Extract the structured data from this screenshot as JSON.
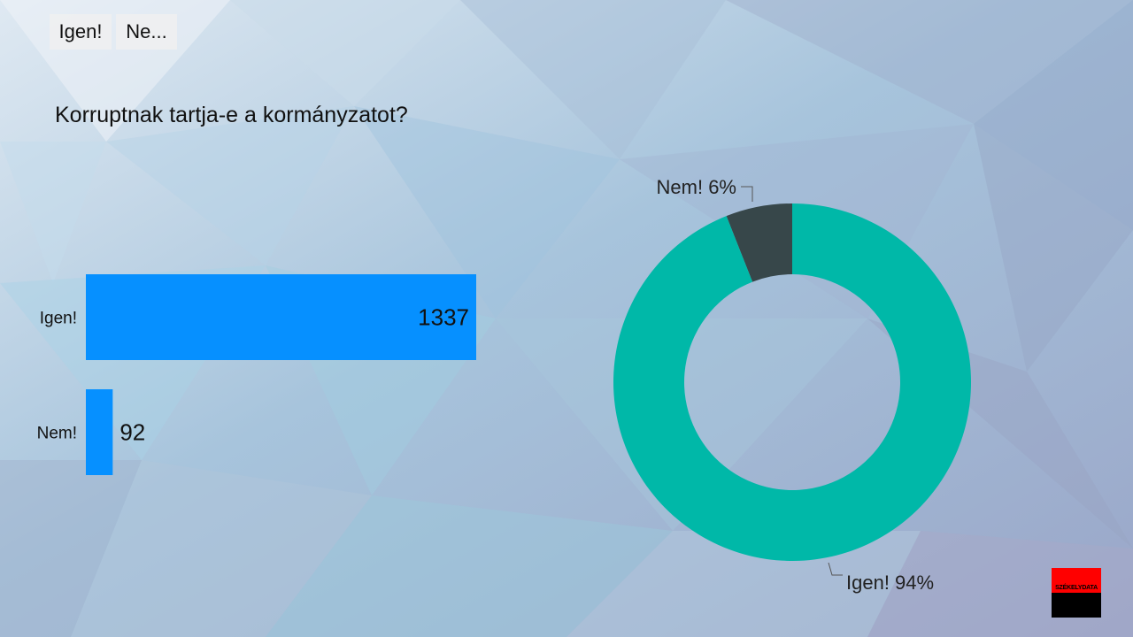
{
  "tabs": [
    {
      "label": "Igen!"
    },
    {
      "label": "Ne..."
    }
  ],
  "title": "Korruptnak tartja-e a kormányzatot?",
  "colors": {
    "bar": "#0690ff",
    "donut_igen": "#00b8a8",
    "donut_nem": "#37474a",
    "logo_top": "#ff0000",
    "logo_bottom": "#000000"
  },
  "logo": {
    "text": "SZÉKELYDATA"
  },
  "chart_data": [
    {
      "type": "bar",
      "orientation": "horizontal",
      "categories": [
        "Igen!",
        "Nem!"
      ],
      "values": [
        1337,
        92
      ],
      "data_labels": [
        "1337",
        "92"
      ]
    },
    {
      "type": "pie",
      "style": "donut",
      "categories": [
        "Nem!",
        "Igen!"
      ],
      "values": [
        6,
        94
      ],
      "data_labels": [
        "Nem! 6%",
        "Igen! 94%"
      ]
    }
  ]
}
